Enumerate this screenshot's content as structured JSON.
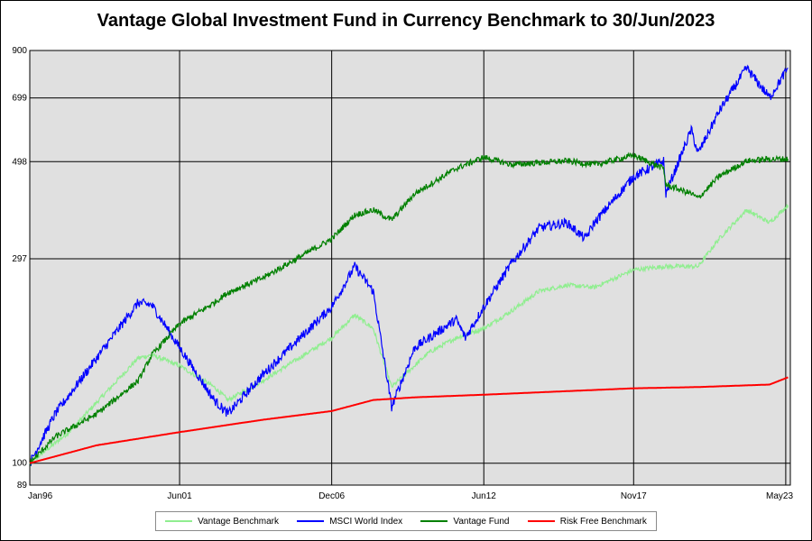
{
  "chart_data": {
    "type": "line",
    "title": "Vantage Global Investment Fund in Currency Benchmark to 30/Jun/2023",
    "xlabel": "",
    "ylabel": "",
    "y_scale": "log",
    "ylim": [
      89,
      900
    ],
    "y_ticks": [
      "89",
      "100",
      "297",
      "498",
      "699",
      "900"
    ],
    "x_ticks": [
      "Jan96",
      "Jun01",
      "Dec06",
      "Jun12",
      "Nov17",
      "May23"
    ],
    "grid": true,
    "legend_position": "bottom",
    "series": [
      {
        "name": "Vantage Benchmark",
        "color": "#90ee90",
        "points": [
          [
            "1996-01",
            100
          ],
          [
            "1997-06",
            118
          ],
          [
            "1998-07",
            140
          ],
          [
            "1999-12",
            175
          ],
          [
            "2000-06",
            178
          ],
          [
            "2001-06",
            168
          ],
          [
            "2002-09",
            150
          ],
          [
            "2003-03",
            140
          ],
          [
            "2004-06",
            155
          ],
          [
            "2006-12",
            195
          ],
          [
            "2007-10",
            220
          ],
          [
            "2008-06",
            205
          ],
          [
            "2009-02",
            150
          ],
          [
            "2010-06",
            180
          ],
          [
            "2011-06",
            195
          ],
          [
            "2012-06",
            205
          ],
          [
            "2013-06",
            225
          ],
          [
            "2014-06",
            250
          ],
          [
            "2015-06",
            258
          ],
          [
            "2016-06",
            255
          ],
          [
            "2017-11",
            280
          ],
          [
            "2018-12",
            285
          ],
          [
            "2020-03",
            285
          ],
          [
            "2020-12",
            330
          ],
          [
            "2021-12",
            385
          ],
          [
            "2022-10",
            360
          ],
          [
            "2023-06",
            395
          ]
        ]
      },
      {
        "name": "MSCI World Index",
        "color": "#0000ff",
        "points": [
          [
            "1996-01",
            100
          ],
          [
            "1996-12",
            130
          ],
          [
            "1998-06",
            175
          ],
          [
            "1999-12",
            235
          ],
          [
            "2000-06",
            232
          ],
          [
            "2001-06",
            185
          ],
          [
            "2002-09",
            140
          ],
          [
            "2003-03",
            130
          ],
          [
            "2004-06",
            160
          ],
          [
            "2006-12",
            230
          ],
          [
            "2007-10",
            285
          ],
          [
            "2008-06",
            250
          ],
          [
            "2009-02",
            135
          ],
          [
            "2009-12",
            185
          ],
          [
            "2011-06",
            215
          ],
          [
            "2011-10",
            195
          ],
          [
            "2012-06",
            230
          ],
          [
            "2013-06",
            290
          ],
          [
            "2014-06",
            350
          ],
          [
            "2015-06",
            360
          ],
          [
            "2016-02",
            330
          ],
          [
            "2016-06",
            360
          ],
          [
            "2017-11",
            460
          ],
          [
            "2018-12",
            500
          ],
          [
            "2019-01",
            420
          ],
          [
            "2019-12",
            590
          ],
          [
            "2020-03",
            520
          ],
          [
            "2020-12",
            650
          ],
          [
            "2021-12",
            820
          ],
          [
            "2022-10",
            700
          ],
          [
            "2023-06",
            820
          ]
        ]
      },
      {
        "name": "Vantage Fund",
        "color": "#008000",
        "points": [
          [
            "1996-01",
            100
          ],
          [
            "1996-12",
            115
          ],
          [
            "1998-06",
            130
          ],
          [
            "1999-12",
            155
          ],
          [
            "2000-06",
            178
          ],
          [
            "2001-06",
            210
          ],
          [
            "2002-09",
            235
          ],
          [
            "2003-03",
            248
          ],
          [
            "2004-06",
            268
          ],
          [
            "2006-12",
            330
          ],
          [
            "2007-10",
            375
          ],
          [
            "2008-06",
            385
          ],
          [
            "2009-02",
            365
          ],
          [
            "2009-12",
            420
          ],
          [
            "2011-06",
            480
          ],
          [
            "2012-06",
            510
          ],
          [
            "2013-06",
            490
          ],
          [
            "2014-06",
            495
          ],
          [
            "2015-06",
            500
          ],
          [
            "2016-06",
            490
          ],
          [
            "2017-11",
            515
          ],
          [
            "2018-12",
            480
          ],
          [
            "2019-01",
            440
          ],
          [
            "2019-12",
            420
          ],
          [
            "2020-03",
            410
          ],
          [
            "2020-12",
            460
          ],
          [
            "2021-12",
            500
          ],
          [
            "2022-10",
            505
          ],
          [
            "2023-06",
            505
          ]
        ]
      },
      {
        "name": "Risk Free Benchmark",
        "color": "#ff0000",
        "points": [
          [
            "1996-01",
            100
          ],
          [
            "1998-06",
            110
          ],
          [
            "2001-06",
            118
          ],
          [
            "2004-06",
            126
          ],
          [
            "2006-12",
            132
          ],
          [
            "2008-06",
            140
          ],
          [
            "2009-12",
            142
          ],
          [
            "2012-06",
            144
          ],
          [
            "2017-11",
            149
          ],
          [
            "2020-03",
            150
          ],
          [
            "2022-10",
            152
          ],
          [
            "2023-06",
            158
          ]
        ]
      }
    ]
  }
}
